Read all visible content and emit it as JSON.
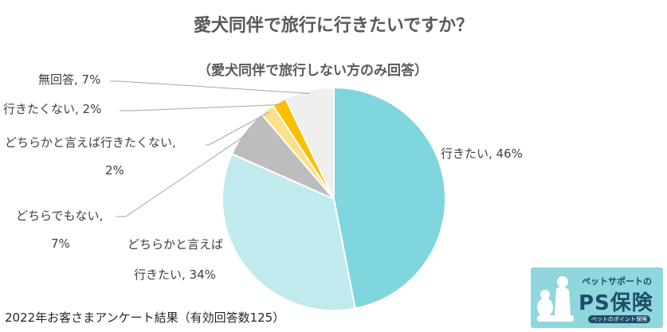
{
  "chart_data": {
    "type": "pie",
    "title": "愛犬同伴で旅行に行きたいですか？",
    "subtitle": "（愛犬同伴で旅行しない方のみ回答）",
    "slices": [
      {
        "label_lines": [
          "行きたい, 46%"
        ],
        "value": 46,
        "color": "#7fd6dc"
      },
      {
        "label_lines": [
          "どちらかと言えば",
          "行きたい, 34%"
        ],
        "value": 34,
        "color": "#c0eaee"
      },
      {
        "label_lines": [
          "どちらでもない,",
          "7%"
        ],
        "value": 7,
        "color": "#bdbdbd"
      },
      {
        "label_lines": [
          "どちらかと言えば行きたくない,",
          "2%"
        ],
        "value": 2,
        "color": "#fde08a"
      },
      {
        "label_lines": [
          "行きたくない, 2%"
        ],
        "value": 2,
        "color": "#fcbf00"
      },
      {
        "label_lines": [
          "無回答, 7%"
        ],
        "value": 7,
        "color": "#efefef"
      }
    ]
  },
  "footer": "2022年お客さまアンケート結果（有効回答数125）",
  "logo": {
    "subtitle": "ペットサポートの",
    "main": "PS保険",
    "tagline": "ペットのポイント保険"
  }
}
